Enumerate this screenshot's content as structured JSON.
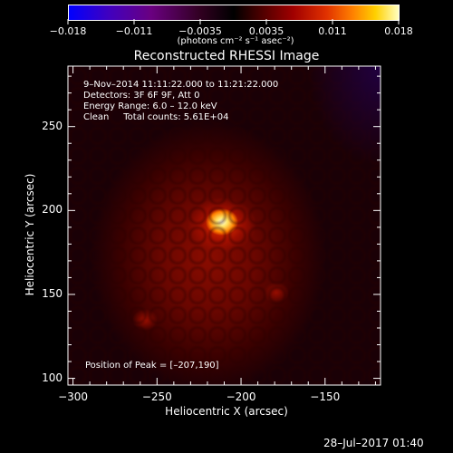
{
  "colorbar": {
    "ticks": [
      "−0.018",
      "−0.011",
      "−0.0035",
      "0.0035",
      "0.011",
      "0.018"
    ],
    "unit_label": "(photons cm⁻² s⁻¹ asec⁻²)"
  },
  "title": "Reconstructed RHESSI Image",
  "info": {
    "line1": "9–Nov–2014 11:11:22.000 to 11:21:22.000",
    "line2": "Detectors: 3F 6F 9F, Att 0",
    "line3": "Energy Range: 6.0 – 12.0 keV",
    "line4": "Clean     Total counts: 5.61E+04"
  },
  "peak_label": "Position of Peak = [–207,190]",
  "footer_date": "28–Jul–2017 01:40",
  "chart_data": {
    "type": "heatmap",
    "title": "Reconstructed RHESSI Image",
    "xlabel": "Heliocentric X (arcsec)",
    "ylabel": "Heliocentric Y (arcsec)",
    "xlim": [
      -303,
      -117
    ],
    "ylim": [
      96,
      286
    ],
    "x_ticks": [
      -300,
      -250,
      -200,
      -150
    ],
    "x_tick_labels": [
      "−300",
      "−250",
      "−200",
      "−150"
    ],
    "y_ticks": [
      100,
      150,
      200,
      250
    ],
    "y_tick_labels": [
      "100",
      "150",
      "200",
      "250"
    ],
    "colorbar_range": [
      -0.018,
      0.018
    ],
    "peak": {
      "x": -207,
      "y": 190
    },
    "colormap": "hot / red-temperature"
  }
}
